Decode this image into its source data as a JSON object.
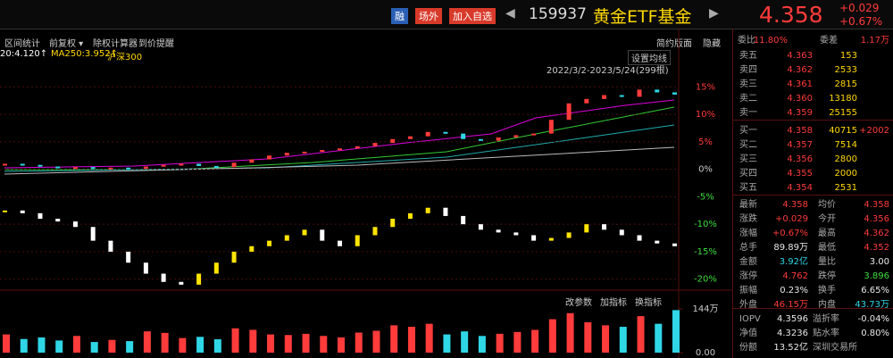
{
  "header": {
    "badges": [
      "融",
      "场外",
      "加入自选"
    ],
    "code": "159937",
    "name": "黄金ETF基金",
    "price": "4.358",
    "change": "+0.029",
    "change_pct": "+0.67%"
  },
  "toolbar": {
    "left": [
      "区间统计",
      "前复权 ▾",
      "除权计算器",
      "到价提醒"
    ],
    "right": [
      "简约版面",
      "隐藏"
    ]
  },
  "legend": [
    "20:4.120↑",
    "MA250:3.952↑",
    "沪深300"
  ],
  "chart_controls": {
    "ma_settings": "设置均线",
    "range": "2022/3/2-2023/5/24(299根)"
  },
  "volume_controls": [
    "改参数",
    "加指标",
    "换指标"
  ],
  "chart_data": [
    {
      "type": "candle",
      "series": [
        {
          "name": "159937",
          "color": "#ff3b3b",
          "down_color": "#2fd6e6",
          "values": [
            1,
            0.8,
            0.5,
            0.3,
            0.4,
            0.2,
            0.3,
            0.1,
            0.5,
            0.8,
            1,
            0.6,
            0.4,
            1.2,
            1.8,
            2.5,
            3,
            3.2,
            3.5,
            3.8,
            4.2,
            4.8,
            5.5,
            6,
            6.8,
            6.5,
            5.5,
            5.2,
            5.8,
            6.2,
            6.5,
            9,
            12,
            12.8,
            13.5,
            13.2,
            14.5,
            14,
            13.6
          ]
        },
        {
          "name": "沪深300",
          "color": "#ffe400",
          "down_color": "#ffffff",
          "values": [
            -7.5,
            -8,
            -9,
            -9.5,
            -10.5,
            -13,
            -15,
            -17,
            -19,
            -20.5,
            -21,
            -19,
            -17,
            -15,
            -14,
            -13,
            -12,
            -11,
            -13,
            -14,
            -12,
            -10.5,
            -9,
            -8,
            -7,
            -8.5,
            -10,
            -11,
            -11.5,
            -12,
            -13,
            -12.5,
            -11.5,
            -10,
            -11,
            -12,
            -13,
            -13.5,
            -14
          ]
        }
      ],
      "ylim": [
        -22,
        17
      ],
      "yticks": [
        {
          "value": 15,
          "label": "15%"
        },
        {
          "value": 10,
          "label": "10%"
        },
        {
          "value": 5,
          "label": "5%"
        },
        {
          "value": 0,
          "label": "0%"
        },
        {
          "value": -5,
          "label": "-5%"
        },
        {
          "value": -10,
          "label": "-10%"
        },
        {
          "value": -15,
          "label": "-15%"
        },
        {
          "value": -20,
          "label": "-20%"
        }
      ],
      "grid": true
    },
    {
      "type": "volume",
      "values": [
        60,
        45,
        50,
        40,
        55,
        35,
        42,
        38,
        70,
        65,
        48,
        52,
        44,
        80,
        75,
        60,
        58,
        62,
        55,
        50,
        66,
        72,
        90,
        85,
        95,
        60,
        70,
        55,
        62,
        68,
        75,
        110,
        130,
        100,
        90,
        85,
        120,
        95,
        140
      ],
      "color": "#ff3b3b",
      "down_color": "#2fd6e6",
      "ylim": [
        0,
        144
      ],
      "yticks": [
        {
          "value": 144,
          "label": "144万"
        },
        {
          "value": 0,
          "label": "0.00"
        }
      ]
    }
  ],
  "order_book": {
    "summary": [
      "委比",
      "11.80%",
      "委差",
      "1.17万"
    ],
    "asks": [
      [
        "卖五",
        "4.363",
        "153"
      ],
      [
        "卖四",
        "4.362",
        "2533"
      ],
      [
        "卖三",
        "4.361",
        "2815"
      ],
      [
        "卖二",
        "4.360",
        "13180"
      ],
      [
        "卖一",
        "4.359",
        "25155"
      ]
    ],
    "bids": [
      [
        "买一",
        "4.358",
        "40715",
        "+2002"
      ],
      [
        "买二",
        "4.357",
        "7514"
      ],
      [
        "买三",
        "4.356",
        "2800"
      ],
      [
        "买四",
        "4.355",
        "2000"
      ],
      [
        "买五",
        "4.354",
        "2531"
      ]
    ]
  },
  "stats": [
    [
      "最新",
      "4.358",
      "均价",
      "4.358"
    ],
    [
      "涨跌",
      "+0.029",
      "今开",
      "4.356"
    ],
    [
      "涨幅",
      "+0.67%",
      "最高",
      "4.362"
    ],
    [
      "总手",
      "89.89万",
      "最低",
      "4.352"
    ],
    [
      "金额",
      "3.92亿",
      "量比",
      "3.00"
    ],
    [
      "涨停",
      "4.762",
      "跌停",
      "3.896"
    ],
    [
      "振幅",
      "0.23%",
      "换手",
      "6.65%"
    ],
    [
      "外盘",
      "46.15万",
      "内盘",
      "43.73万"
    ]
  ],
  "stats_colors": [
    [
      "#ff3b3b",
      "#ff3b3b"
    ],
    [
      "#ff3b3b",
      "#ff3b3b"
    ],
    [
      "#ff3b3b",
      "#ff3b3b"
    ],
    [
      "#e8e8e8",
      "#ff3b3b"
    ],
    [
      "#2fd6e6",
      "#e8e8e8"
    ],
    [
      "#ff3b3b",
      "#3fdc3f"
    ],
    [
      "#e8e8e8",
      "#e8e8e8"
    ],
    [
      "#ff3b3b",
      "#2fd6e6"
    ]
  ],
  "fund": [
    [
      "IOPV",
      "4.3596",
      "溢折率",
      "-0.04%"
    ],
    [
      "净值",
      "4.3236",
      "贴水率",
      "0.80%"
    ],
    [
      "份额",
      "13.52亿",
      "深圳交易所",
      ""
    ]
  ]
}
